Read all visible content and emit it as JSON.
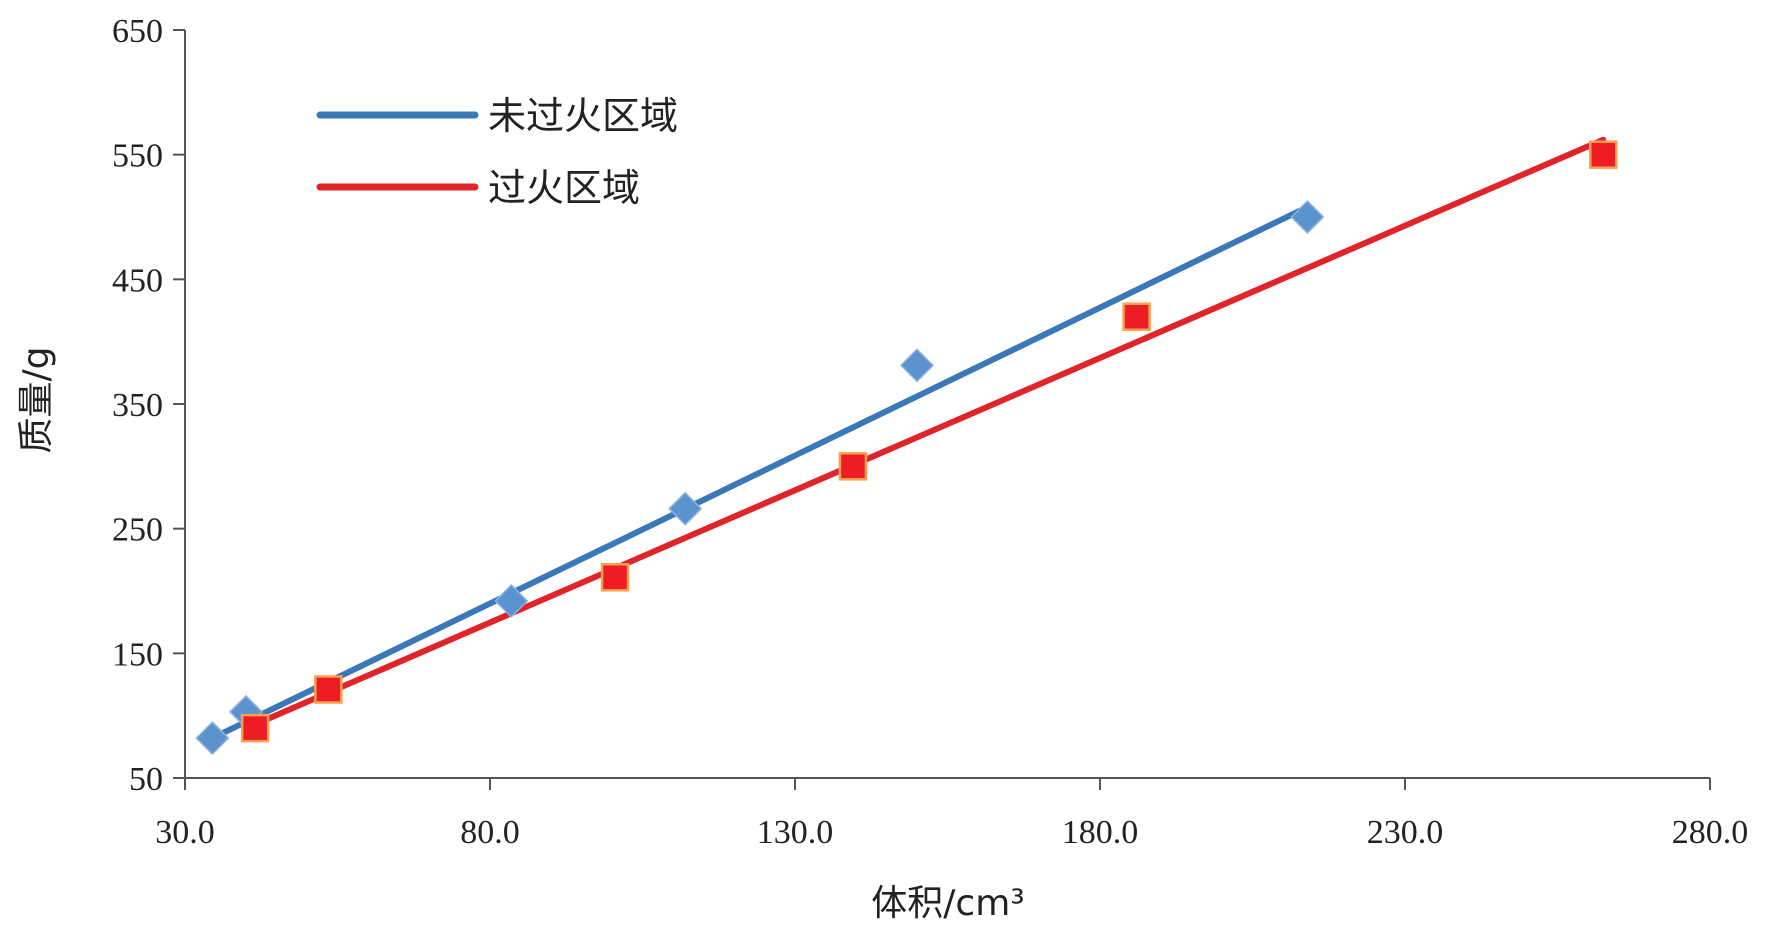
{
  "chart_data": {
    "type": "scatter",
    "xlabel": "体积/cm³",
    "ylabel": "质量/g",
    "xlim": [
      30.0,
      280.0
    ],
    "ylim": [
      50,
      650
    ],
    "x_ticks": [
      "30.0",
      "80.0",
      "130.0",
      "180.0",
      "230.0",
      "280.0"
    ],
    "y_ticks": [
      "50",
      "150",
      "250",
      "350",
      "450",
      "550",
      "650"
    ],
    "grid": false,
    "legend_position": "top-left",
    "series": [
      {
        "name": "未过火区域",
        "color": "#3B78B8",
        "marker": "diamond",
        "marker_color": "#5B93CF",
        "points": [
          {
            "x": 34.5,
            "y": 82
          },
          {
            "x": 40.0,
            "y": 103
          },
          {
            "x": 83.5,
            "y": 192
          },
          {
            "x": 112.0,
            "y": 266
          },
          {
            "x": 150.0,
            "y": 381
          },
          {
            "x": 214.0,
            "y": 500
          }
        ],
        "trendline": {
          "x": [
            34.5,
            214.0
          ],
          "y": [
            82,
            508
          ]
        }
      },
      {
        "name": "过火区域",
        "color": "#E0242A",
        "marker": "square",
        "marker_color": "#EE1C24",
        "points": [
          {
            "x": 41.5,
            "y": 90
          },
          {
            "x": 53.5,
            "y": 121
          },
          {
            "x": 100.5,
            "y": 211
          },
          {
            "x": 139.5,
            "y": 300
          },
          {
            "x": 186.0,
            "y": 420
          },
          {
            "x": 262.5,
            "y": 550
          }
        ],
        "trendline": {
          "x": [
            41.5,
            262.5
          ],
          "y": [
            93,
            562
          ]
        }
      }
    ]
  }
}
